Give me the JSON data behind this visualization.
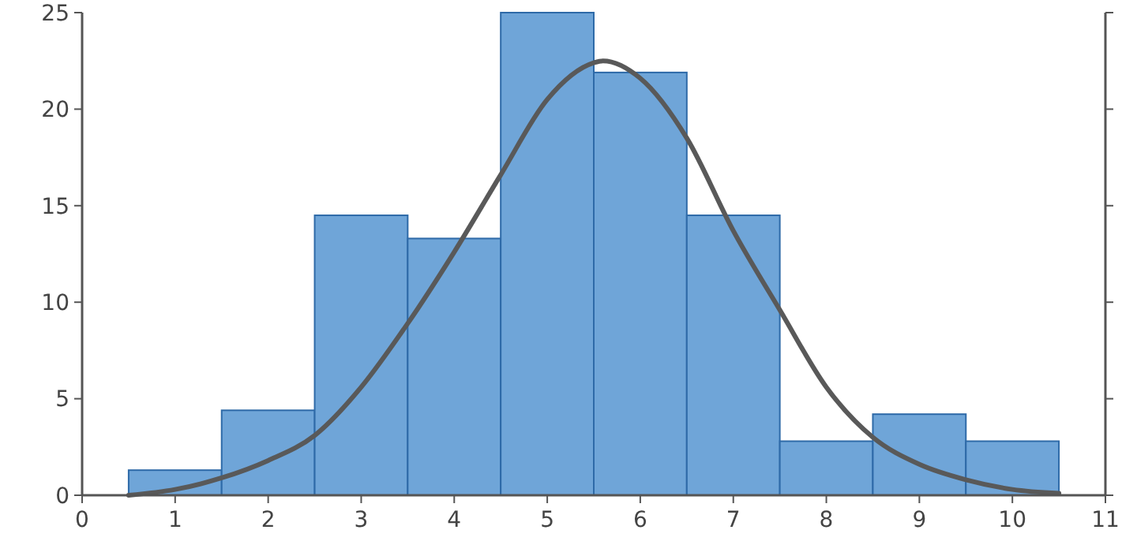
{
  "chart_data": {
    "type": "histogram",
    "bins": [
      0.5,
      1.5,
      2.5,
      3.5,
      4.5,
      5.5,
      6.5,
      7.5,
      8.5,
      9.5,
      10.5
    ],
    "values": [
      1.3,
      4.4,
      14.5,
      13.3,
      25,
      21.9,
      14.5,
      2.8,
      4.2,
      2.8
    ],
    "color": "#6fa5d8",
    "series": [
      {
        "type": "line",
        "color": "#595959",
        "x": [
          0.5,
          1,
          1.5,
          2,
          2.5,
          3,
          3.5,
          4,
          4.5,
          5,
          5.5,
          5.6,
          6,
          6.5,
          7,
          7.5,
          8,
          8.5,
          9,
          9.5,
          10,
          10.5
        ],
        "values": [
          0,
          0.3,
          0.9,
          1.8,
          3.1,
          5.6,
          8.9,
          12.6,
          16.6,
          20.5,
          22.4,
          22.5,
          21.6,
          18.5,
          13.7,
          9.6,
          5.6,
          3.0,
          1.6,
          0.8,
          0.3,
          0.1
        ]
      }
    ],
    "xlim": [
      0,
      11
    ],
    "xticks": [
      0,
      1,
      2,
      3,
      4,
      5,
      6,
      7,
      8,
      9,
      10,
      11
    ],
    "ylim": [
      0,
      25
    ],
    "yticks": [
      0,
      5,
      10,
      15,
      20,
      25
    ],
    "grid": false
  }
}
